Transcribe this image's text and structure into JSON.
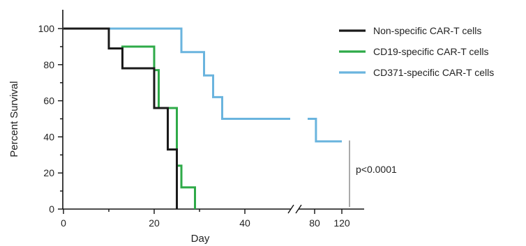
{
  "chart_data": {
    "type": "line",
    "subtype": "kaplan-meier-step",
    "xlabel": "Day",
    "ylabel": "Percent Survival",
    "ylim": [
      0,
      100
    ],
    "yticks": [
      0,
      20,
      40,
      60,
      80,
      100
    ],
    "y_minor_ticks": [
      10,
      30,
      50,
      70,
      90
    ],
    "x_segments": [
      {
        "range": [
          0,
          50
        ],
        "ticks": [
          0,
          20,
          40
        ],
        "minor_ticks": [
          10,
          30
        ]
      },
      {
        "range": [
          70,
          130
        ],
        "ticks": [
          80,
          120
        ]
      }
    ],
    "x_axis_break": true,
    "legend": {
      "position": "top-right"
    },
    "grid": false,
    "series": [
      {
        "name": "Non-specific CAR-T cells",
        "color": "#1a1a1a",
        "steps": [
          [
            0,
            100
          ],
          [
            10,
            100
          ],
          [
            10,
            89
          ],
          [
            13,
            89
          ],
          [
            13,
            78
          ],
          [
            20,
            78
          ],
          [
            20,
            56
          ],
          [
            23,
            56
          ],
          [
            23,
            33
          ],
          [
            25,
            33
          ],
          [
            25,
            0
          ]
        ]
      },
      {
        "name": "CD19-specific CAR-T cells",
        "color": "#2eaa48",
        "steps": [
          [
            0,
            100
          ],
          [
            10,
            100
          ],
          [
            10,
            89
          ],
          [
            13,
            89
          ],
          [
            13,
            90
          ],
          [
            20,
            90
          ],
          [
            20,
            77
          ],
          [
            21,
            77
          ],
          [
            21,
            56
          ],
          [
            25,
            56
          ],
          [
            25,
            24
          ],
          [
            26,
            24
          ],
          [
            26,
            12
          ],
          [
            29,
            12
          ],
          [
            29,
            0
          ]
        ]
      },
      {
        "name": "CD371-specific CAR-T cells",
        "color": "#6ab4de",
        "steps": [
          [
            0,
            100
          ],
          [
            26,
            100
          ],
          [
            26,
            87
          ],
          [
            31,
            87
          ],
          [
            31,
            74
          ],
          [
            33,
            74
          ],
          [
            33,
            62
          ],
          [
            35,
            62
          ],
          [
            35,
            50
          ],
          [
            50,
            50
          ]
        ],
        "steps_after_break": [
          [
            75,
            50
          ],
          [
            82,
            50
          ],
          [
            82,
            37.5
          ],
          [
            120,
            37.5
          ]
        ]
      }
    ],
    "annotation": {
      "text": "p<0.0001",
      "y_range": [
        5,
        38
      ],
      "bracket_color": "#aaaaaa"
    }
  }
}
